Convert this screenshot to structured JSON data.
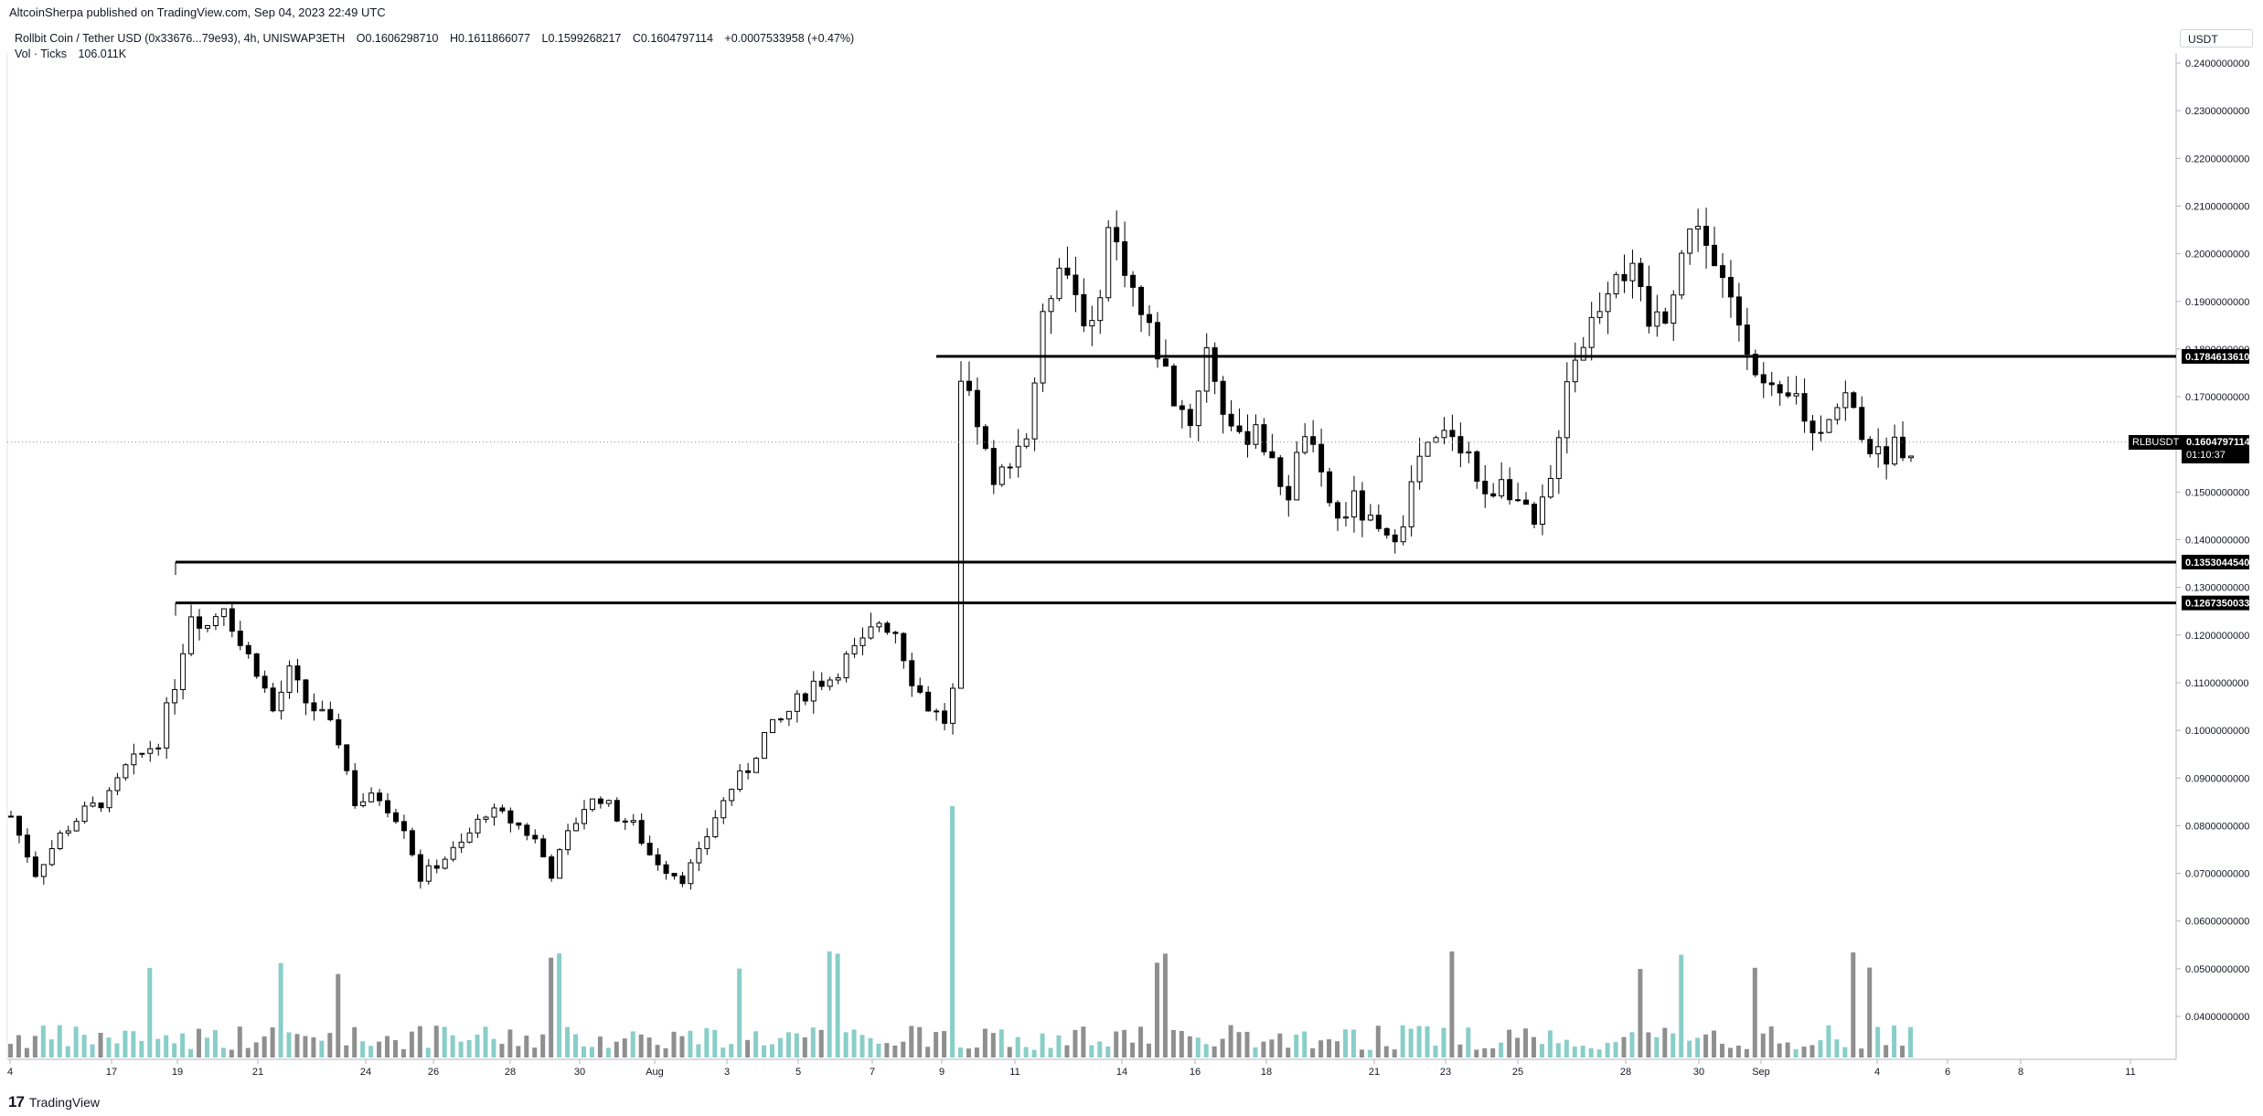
{
  "publisher": "AltcoinSherpa published on TradingView.com, Sep 04, 2023 22:49 UTC",
  "legend": {
    "symbol": "Rollbit Coin / Tether USD (0x33676...79e93), 4h, UNISWAP3ETH",
    "open_label": "O",
    "open": "0.1606298710",
    "high_label": "H",
    "high": "0.1611866077",
    "low_label": "L",
    "low": "0.1599268217",
    "close_label": "C",
    "close": "0.1604797114",
    "change": "+0.0007533958 (+0.47%)",
    "volume_label": "Vol · Ticks",
    "volume": "106.011K"
  },
  "currency": "USDT",
  "symbol_short": "RLBUSDT",
  "last_price": "0.1604797114",
  "countdown": "01:10:37",
  "brand": "TradingView",
  "colors": {
    "up": "#ffffff",
    "down": "#000000",
    "vol_up": "#89cec8",
    "vol_down": "#8f8f8f",
    "level": "#000000"
  },
  "chart_data": {
    "type": "candlestick",
    "timeframe": "4h",
    "ylim": [
      0.03,
      0.245
    ],
    "y_ticks": [
      "0.2400000000",
      "0.2300000000",
      "0.2200000000",
      "0.2100000000",
      "0.2000000000",
      "0.1900000000",
      "0.1800000000",
      "0.1700000000",
      "0.1600000000",
      "0.1500000000",
      "0.1400000000",
      "0.1300000000",
      "0.1200000000",
      "0.1100000000",
      "0.1000000000",
      "0.0900000000",
      "0.0800000000",
      "0.0700000000",
      "0.0600000000",
      "0.0500000000",
      "0.0400000000"
    ],
    "x_ticks": [
      "4",
      "17",
      "19",
      "21",
      "24",
      "26",
      "28",
      "30",
      "Aug",
      "3",
      "5",
      "7",
      "9",
      "11",
      "14",
      "16",
      "18",
      "21",
      "23",
      "25",
      "28",
      "30",
      "Sep",
      "4",
      "6",
      "8",
      "11"
    ],
    "horizontal_levels": [
      {
        "label": "0.1784613610",
        "value": 0.178461361,
        "from_date": "Aug 8"
      },
      {
        "label": "0.1353044540",
        "value": 0.135304454,
        "from_date": "Jul 18"
      },
      {
        "label": "0.1267350033",
        "value": 0.1267350033,
        "from_date": "Jul 18"
      }
    ],
    "close_path": [
      [
        0,
        0.082
      ],
      [
        3,
        0.07
      ],
      [
        6,
        0.078
      ],
      [
        9,
        0.083
      ],
      [
        12,
        0.086
      ],
      [
        14,
        0.092
      ],
      [
        16,
        0.095
      ],
      [
        18,
        0.098
      ],
      [
        20,
        0.11
      ],
      [
        22,
        0.125
      ],
      [
        24,
        0.122
      ],
      [
        26,
        0.127
      ],
      [
        28,
        0.118
      ],
      [
        30,
        0.113
      ],
      [
        32,
        0.104
      ],
      [
        34,
        0.112
      ],
      [
        36,
        0.106
      ],
      [
        38,
        0.103
      ],
      [
        40,
        0.098
      ],
      [
        42,
        0.085
      ],
      [
        45,
        0.086
      ],
      [
        48,
        0.08
      ],
      [
        50,
        0.069
      ],
      [
        52,
        0.072
      ],
      [
        55,
        0.076
      ],
      [
        58,
        0.083
      ],
      [
        60,
        0.082
      ],
      [
        62,
        0.08
      ],
      [
        64,
        0.077
      ],
      [
        66,
        0.07
      ],
      [
        68,
        0.078
      ],
      [
        70,
        0.084
      ],
      [
        72,
        0.086
      ],
      [
        74,
        0.082
      ],
      [
        76,
        0.08
      ],
      [
        78,
        0.074
      ],
      [
        80,
        0.071
      ],
      [
        82,
        0.069
      ],
      [
        84,
        0.074
      ],
      [
        86,
        0.082
      ],
      [
        88,
        0.088
      ],
      [
        90,
        0.092
      ],
      [
        92,
        0.099
      ],
      [
        94,
        0.102
      ],
      [
        96,
        0.106
      ],
      [
        98,
        0.11
      ],
      [
        100,
        0.111
      ],
      [
        102,
        0.115
      ],
      [
        104,
        0.118
      ],
      [
        106,
        0.123
      ],
      [
        108,
        0.121
      ],
      [
        110,
        0.111
      ],
      [
        112,
        0.105
      ],
      [
        114,
        0.102
      ],
      [
        115,
        0.108
      ],
      [
        116,
        0.172
      ],
      [
        118,
        0.165
      ],
      [
        120,
        0.15
      ],
      [
        122,
        0.158
      ],
      [
        124,
        0.162
      ],
      [
        126,
        0.185
      ],
      [
        128,
        0.2
      ],
      [
        130,
        0.192
      ],
      [
        132,
        0.183
      ],
      [
        134,
        0.205
      ],
      [
        136,
        0.198
      ],
      [
        138,
        0.187
      ],
      [
        140,
        0.18
      ],
      [
        142,
        0.17
      ],
      [
        144,
        0.165
      ],
      [
        146,
        0.18
      ],
      [
        148,
        0.168
      ],
      [
        150,
        0.16
      ],
      [
        152,
        0.165
      ],
      [
        154,
        0.155
      ],
      [
        156,
        0.15
      ],
      [
        158,
        0.163
      ],
      [
        160,
        0.152
      ],
      [
        162,
        0.144
      ],
      [
        164,
        0.148
      ],
      [
        166,
        0.143
      ],
      [
        168,
        0.139
      ],
      [
        170,
        0.145
      ],
      [
        172,
        0.157
      ],
      [
        174,
        0.16
      ],
      [
        176,
        0.163
      ],
      [
        178,
        0.158
      ],
      [
        180,
        0.148
      ],
      [
        182,
        0.154
      ],
      [
        184,
        0.148
      ],
      [
        186,
        0.142
      ],
      [
        188,
        0.152
      ],
      [
        190,
        0.175
      ],
      [
        192,
        0.182
      ],
      [
        194,
        0.19
      ],
      [
        196,
        0.198
      ],
      [
        198,
        0.195
      ],
      [
        200,
        0.185
      ],
      [
        202,
        0.188
      ],
      [
        204,
        0.2
      ],
      [
        206,
        0.208
      ],
      [
        208,
        0.196
      ],
      [
        210,
        0.19
      ],
      [
        212,
        0.182
      ],
      [
        214,
        0.172
      ],
      [
        216,
        0.168
      ],
      [
        218,
        0.17
      ],
      [
        220,
        0.162
      ],
      [
        222,
        0.167
      ],
      [
        224,
        0.17
      ],
      [
        226,
        0.163
      ],
      [
        228,
        0.157
      ],
      [
        230,
        0.16
      ],
      [
        232,
        0.16
      ]
    ]
  }
}
